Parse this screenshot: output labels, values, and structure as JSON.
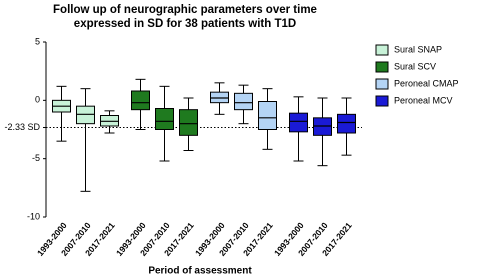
{
  "chart_data": {
    "type": "box",
    "title": [
      "Follow up of neurographic parameters over time",
      "expressed in SD for 38 patients with T1D"
    ],
    "x_label": "Period of assessment",
    "categories": [
      "1993-2000",
      "2007-2010",
      "2017-2021"
    ],
    "ylim": [
      -10,
      5
    ],
    "yticks": [
      5,
      0,
      {
        "value": -2.33,
        "label": "-2.33 SD"
      },
      -5,
      -10
    ],
    "legend": "right",
    "series": [
      {
        "name": "Sural SNAP",
        "color": "#c8f2d8",
        "min": [
          -3.5,
          -7.8,
          -2.8
        ],
        "q1": [
          -1.0,
          -2.0,
          -2.2
        ],
        "median": [
          -0.5,
          -1.2,
          -1.8
        ],
        "q3": [
          0.0,
          -0.5,
          -1.3
        ],
        "max": [
          1.2,
          1.0,
          -0.9
        ]
      },
      {
        "name": "Sural SCV",
        "color": "#1f7a1f",
        "min": [
          -2.5,
          -5.2,
          -4.3
        ],
        "q1": [
          -0.8,
          -2.5,
          -3.0
        ],
        "median": [
          -0.2,
          -1.8,
          -2.0
        ],
        "q3": [
          0.8,
          -0.7,
          -0.8
        ],
        "max": [
          1.8,
          1.2,
          0.2
        ]
      },
      {
        "name": "Peroneal CMAP",
        "color": "#b4d4f5",
        "min": [
          -1.2,
          -2.0,
          -4.2
        ],
        "q1": [
          -0.2,
          -0.8,
          -2.5
        ],
        "median": [
          0.2,
          -0.2,
          -1.5
        ],
        "q3": [
          0.7,
          0.6,
          -0.1
        ],
        "max": [
          1.5,
          1.3,
          1.0
        ]
      },
      {
        "name": "Peroneal MCV",
        "color": "#1a1ad6",
        "min": [
          -5.2,
          -5.6,
          -4.7
        ],
        "q1": [
          -2.7,
          -3.0,
          -2.8
        ],
        "median": [
          -1.8,
          -2.2,
          -1.9
        ],
        "q3": [
          -1.1,
          -1.5,
          -1.2
        ],
        "max": [
          0.3,
          0.2,
          0.2
        ]
      }
    ]
  }
}
